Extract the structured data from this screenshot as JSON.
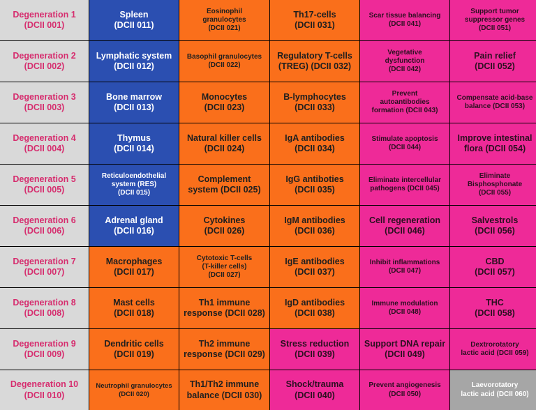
{
  "colors": {
    "gray": "#d9d9d9",
    "gray_dark": "#a6a6a6",
    "blue": "#2b4fb1",
    "orange": "#fa6f1b",
    "pink": "#ee2a98",
    "degeneration_text": "#d62d6e"
  },
  "rows": [
    [
      {
        "lines": [
          "Degeneration 1",
          "(DCII 001)"
        ],
        "color": "gray",
        "size": "l"
      },
      {
        "lines": [
          "Spleen",
          "(DCII 011)"
        ],
        "color": "blue",
        "size": "l"
      },
      {
        "lines": [
          "Eosinophil",
          "granulocytes",
          "(DCII 021)"
        ],
        "color": "orange",
        "size": "s"
      },
      {
        "lines": [
          "Th17-cells",
          "(DCII 031)"
        ],
        "color": "orange",
        "size": "l"
      },
      {
        "lines": [
          "Scar tissue balancing",
          "(DCII 041)"
        ],
        "color": "pink",
        "size": "s"
      },
      {
        "lines": [
          "Support tumor",
          "suppressor genes",
          "(DCII 051)"
        ],
        "color": "pink",
        "size": "s"
      }
    ],
    [
      {
        "lines": [
          "Degeneration 2",
          "(DCII 002)"
        ],
        "color": "gray",
        "size": "l"
      },
      {
        "lines": [
          "Lymphatic system",
          "(DCII 012)"
        ],
        "color": "blue",
        "size": "l"
      },
      {
        "lines": [
          "Basophil granulocytes",
          "(DCII 022)"
        ],
        "color": "orange",
        "size": "s"
      },
      {
        "lines": [
          "Regulatory T-cells",
          "(TREG) (DCII 032)"
        ],
        "color": "orange",
        "size": "l"
      },
      {
        "lines": [
          "Vegetative",
          "dysfunction",
          "(DCII 042)"
        ],
        "color": "pink",
        "size": "s"
      },
      {
        "lines": [
          "Pain relief",
          "(DCII 052)"
        ],
        "color": "pink",
        "size": "l"
      }
    ],
    [
      {
        "lines": [
          "Degeneration 3",
          "(DCII 003)"
        ],
        "color": "gray",
        "size": "l"
      },
      {
        "lines": [
          "Bone marrow",
          "(DCII 013)"
        ],
        "color": "blue",
        "size": "l"
      },
      {
        "lines": [
          "Monocytes",
          "(DCII 023)"
        ],
        "color": "orange",
        "size": "l"
      },
      {
        "lines": [
          "B-lymphocytes",
          "(DCII 033)"
        ],
        "color": "orange",
        "size": "l"
      },
      {
        "lines": [
          "Prevent",
          "autoantibodies",
          "formation (DCII 043)"
        ],
        "color": "pink",
        "size": "s"
      },
      {
        "lines": [
          "Compensate acid-base",
          "balance (DCII 053)"
        ],
        "color": "pink",
        "size": "s"
      }
    ],
    [
      {
        "lines": [
          "Degeneration 4",
          "(DCII 004)"
        ],
        "color": "gray",
        "size": "l"
      },
      {
        "lines": [
          "Thymus",
          "(DCII 014)"
        ],
        "color": "blue",
        "size": "l"
      },
      {
        "lines": [
          "Natural killer cells",
          "(DCII 024)"
        ],
        "color": "orange",
        "size": "l"
      },
      {
        "lines": [
          "IgA antibodies",
          "(DCII 034)"
        ],
        "color": "orange",
        "size": "l"
      },
      {
        "lines": [
          "Stimulate apoptosis",
          "(DCII 044)"
        ],
        "color": "pink",
        "size": "s"
      },
      {
        "lines": [
          "Improve intestinal",
          "flora (DCII 054)"
        ],
        "color": "pink",
        "size": "l"
      }
    ],
    [
      {
        "lines": [
          "Degeneration 5",
          "(DCII 005)"
        ],
        "color": "gray",
        "size": "l"
      },
      {
        "lines": [
          "Reticuloendothelial",
          "system (RES)",
          "(DCII 015)"
        ],
        "color": "blue",
        "size": "s"
      },
      {
        "lines": [
          "Complement",
          "system (DCII 025)"
        ],
        "color": "orange",
        "size": "l"
      },
      {
        "lines": [
          "IgG antiboties",
          "(DCII 035)"
        ],
        "color": "orange",
        "size": "l"
      },
      {
        "lines": [
          "Eliminate intercellular",
          "pathogens (DCII 045)"
        ],
        "color": "pink",
        "size": "s"
      },
      {
        "lines": [
          "Eliminate",
          "Bisphosphonate",
          "(DCII 055)"
        ],
        "color": "pink",
        "size": "s"
      }
    ],
    [
      {
        "lines": [
          "Degeneration 6",
          "(DCII 006)"
        ],
        "color": "gray",
        "size": "l"
      },
      {
        "lines": [
          "Adrenal gland",
          "(DCII 016)"
        ],
        "color": "blue",
        "size": "l"
      },
      {
        "lines": [
          "Cytokines",
          "(DCII 026)"
        ],
        "color": "orange",
        "size": "l"
      },
      {
        "lines": [
          "IgM antibodies",
          "(DCII 036)"
        ],
        "color": "orange",
        "size": "l"
      },
      {
        "lines": [
          "Cell regeneration",
          "(DCII 046)"
        ],
        "color": "pink",
        "size": "l"
      },
      {
        "lines": [
          "Salvestrols",
          "(DCII 056)"
        ],
        "color": "pink",
        "size": "l"
      }
    ],
    [
      {
        "lines": [
          "Degeneration 7",
          "(DCII 007)"
        ],
        "color": "gray",
        "size": "l"
      },
      {
        "lines": [
          "Macrophages",
          "(DCII 017)"
        ],
        "color": "orange",
        "size": "l"
      },
      {
        "lines": [
          "Cytotoxic T-cells",
          "(T-killer cells)",
          "(DCII 027)"
        ],
        "color": "orange",
        "size": "s"
      },
      {
        "lines": [
          "IgE antibodies",
          "(DCII 037)"
        ],
        "color": "orange",
        "size": "l"
      },
      {
        "lines": [
          "Inhibit inflammations",
          "(DCII 047)"
        ],
        "color": "pink",
        "size": "s"
      },
      {
        "lines": [
          "CBD",
          "(DCII 057)"
        ],
        "color": "pink",
        "size": "l"
      }
    ],
    [
      {
        "lines": [
          "Degeneration 8",
          "(DCII 008)"
        ],
        "color": "gray",
        "size": "l"
      },
      {
        "lines": [
          "Mast cells",
          "(DCII 018)"
        ],
        "color": "orange",
        "size": "l"
      },
      {
        "lines": [
          "Th1 immune",
          "response (DCII 028)"
        ],
        "color": "orange",
        "size": "l"
      },
      {
        "lines": [
          "IgD antibodies",
          "(DCII 038)"
        ],
        "color": "orange",
        "size": "l"
      },
      {
        "lines": [
          "Immune modulation",
          "(DCII 048)"
        ],
        "color": "pink",
        "size": "s"
      },
      {
        "lines": [
          "THC",
          "(DCII 058)"
        ],
        "color": "pink",
        "size": "l"
      }
    ],
    [
      {
        "lines": [
          "Degeneration 9",
          "(DCII 009)"
        ],
        "color": "gray",
        "size": "l"
      },
      {
        "lines": [
          "Dendritic cells",
          "(DCII 019)"
        ],
        "color": "orange",
        "size": "l"
      },
      {
        "lines": [
          "Th2 immune",
          "response (DCII 029)"
        ],
        "color": "orange",
        "size": "l"
      },
      {
        "lines": [
          "Stress reduction",
          "(DCII 039)"
        ],
        "color": "pink",
        "size": "l"
      },
      {
        "lines": [
          "Support DNA repair",
          "(DCII 049)"
        ],
        "color": "pink",
        "size": "l"
      },
      {
        "lines": [
          "Dextrorotatory",
          "lactic acid (DCII 059)"
        ],
        "color": "pink",
        "size": "s"
      }
    ],
    [
      {
        "lines": [
          "Degeneration 10",
          "(DCII 010)"
        ],
        "color": "gray",
        "size": "l"
      },
      {
        "lines": [
          "Neutrophil granulocytes",
          "(DCII 020)"
        ],
        "color": "orange",
        "size": "xs"
      },
      {
        "lines": [
          "Th1/Th2 immune",
          "balance (DCII 030)"
        ],
        "color": "orange",
        "size": "l"
      },
      {
        "lines": [
          "Shock/trauma",
          "(DCII 040)"
        ],
        "color": "pink",
        "size": "l"
      },
      {
        "lines": [
          "Prevent angiogenesis",
          "(DCII 050)"
        ],
        "color": "pink",
        "size": "s"
      },
      {
        "lines": [
          "Laevorotatory",
          "lactic acid (DCII 060)"
        ],
        "color": "gray_dark",
        "size": "s"
      }
    ]
  ]
}
